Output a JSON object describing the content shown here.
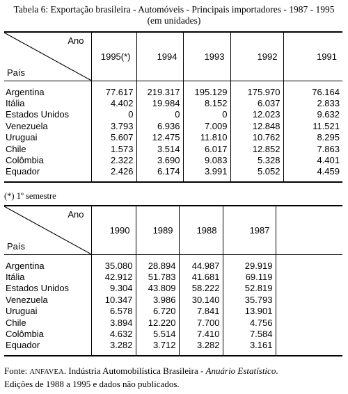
{
  "title": {
    "line1": "Tabela 6: Exportação brasileira - Automóveis - Principais importadores - 1987 - 1995",
    "line2": "(em unidades)"
  },
  "corner": {
    "ano": "Ano",
    "pais": "País"
  },
  "table1": {
    "years": [
      "1995(*)",
      "1994",
      "1993",
      "1992",
      "1991"
    ],
    "rows": [
      {
        "country": "Argentina",
        "values": [
          "77.617",
          "219.317",
          "195.129",
          "175.970",
          "76.164"
        ]
      },
      {
        "country": "Itália",
        "values": [
          "4.402",
          "19.984",
          "8.152",
          "6.037",
          "2.833"
        ]
      },
      {
        "country": "Estados Unidos",
        "values": [
          "0",
          "0",
          "0",
          "12.023",
          "9.632"
        ]
      },
      {
        "country": "Venezuela",
        "values": [
          "3.793",
          "6.936",
          "7.009",
          "12.848",
          "11.521"
        ]
      },
      {
        "country": "Uruguai",
        "values": [
          "5.607",
          "12.475",
          "11.810",
          "10.762",
          "8.295"
        ]
      },
      {
        "country": "Chile",
        "values": [
          "1.573",
          "3.514",
          "6.017",
          "12.852",
          "7.863"
        ]
      },
      {
        "country": "Colômbia",
        "values": [
          "2.322",
          "3.690",
          "9.083",
          "5.328",
          "4.401"
        ]
      },
      {
        "country": "Equador",
        "values": [
          "2.426",
          "6.174",
          "3.991",
          "5.052",
          "4.459"
        ]
      }
    ]
  },
  "note": "(*) 1º semestre",
  "table2": {
    "years": [
      "1990",
      "1989",
      "1988",
      "1987"
    ],
    "rows": [
      {
        "country": "Argentina",
        "values": [
          "35.080",
          "28.894",
          "44.987",
          "29.919"
        ]
      },
      {
        "country": "Itália",
        "values": [
          "42.912",
          "51.783",
          "41.681",
          "69.119"
        ]
      },
      {
        "country": "Estados Unidos",
        "values": [
          "9.304",
          "43.809",
          "58.222",
          "52.819"
        ]
      },
      {
        "country": "Venezuela",
        "values": [
          "10.347",
          "3.986",
          "30.140",
          "35.793"
        ]
      },
      {
        "country": "Uruguai",
        "values": [
          "6.578",
          "6.720",
          "7.841",
          "13.901"
        ]
      },
      {
        "country": "Chile",
        "values": [
          "3.894",
          "12.220",
          "7.700",
          "4.756"
        ]
      },
      {
        "country": "Colômbia",
        "values": [
          "4.632",
          "5.514",
          "7.410",
          "7.584"
        ]
      },
      {
        "country": "Equador",
        "values": [
          "3.282",
          "3.712",
          "3.282",
          "3.161"
        ]
      }
    ]
  },
  "source": {
    "prefix": "Fonte:",
    "org": "ANFAVEA",
    "text": ". Indústria Automobilística Brasileira -",
    "publication": "Anuário Estatístico",
    "end": ".",
    "line2": "Edições de 1988 a 1995 e dados não publicados."
  }
}
